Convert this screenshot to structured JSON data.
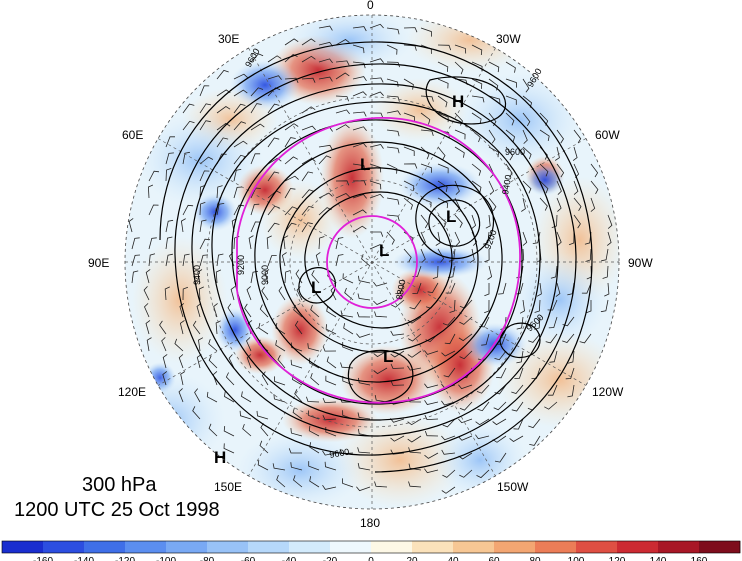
{
  "caption": {
    "level": "300 hPa",
    "datetime": "1200 UTC 25 Oct 1998"
  },
  "longitude_labels": {
    "lon_0": "0",
    "lon_30w": "30W",
    "lon_60w": "60W",
    "lon_90w": "90W",
    "lon_120w": "120W",
    "lon_150w": "150W",
    "lon_180": "180",
    "lon_150e": "150E",
    "lon_120e": "120E",
    "lon_90e": "90E",
    "lon_60e": "60E",
    "lon_30e": "30E"
  },
  "pressure_centers": [
    {
      "type": "H"
    },
    {
      "type": "H"
    },
    {
      "type": "L"
    },
    {
      "type": "L"
    },
    {
      "type": "L"
    },
    {
      "type": "L"
    },
    {
      "type": "L"
    }
  ],
  "contour_labels": [
    "9600",
    "9600",
    "9600",
    "9400",
    "9400",
    "9200",
    "9200",
    "9000",
    "8800",
    "9600",
    "9600"
  ],
  "colorbar": {
    "ticks": [
      "-160",
      "-140",
      "-120",
      "-100",
      "-80",
      "-60",
      "-40",
      "-20",
      "0",
      "20",
      "40",
      "60",
      "80",
      "100",
      "120",
      "140",
      "160"
    ],
    "colors": [
      "#1a2ecf",
      "#2c4ee0",
      "#3f6fe8",
      "#5b8ef0",
      "#79a9f4",
      "#98c2f7",
      "#b6d8fa",
      "#d3ebfc",
      "#eef8fd",
      "#fdf8e6",
      "#fbe2bb",
      "#f7c794",
      "#f3a672",
      "#ec7d57",
      "#df4f43",
      "#cc2a32",
      "#a81726",
      "#7e0d1c"
    ]
  },
  "colors": {
    "contour": "#000000",
    "jet_outline": "#e020d8",
    "graticule": "#555555"
  }
}
